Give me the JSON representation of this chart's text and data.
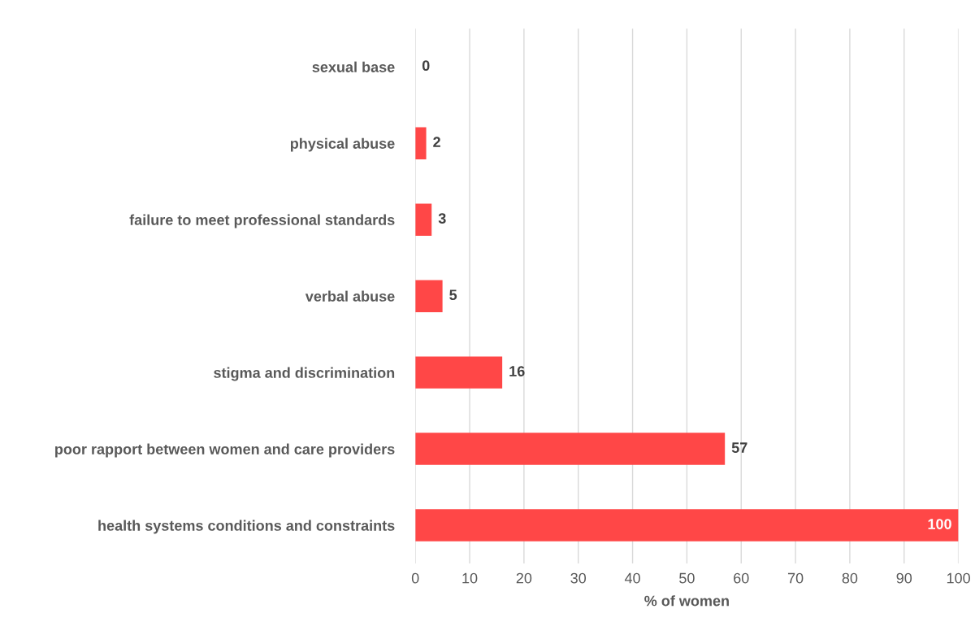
{
  "chart_data": {
    "type": "bar",
    "orientation": "horizontal",
    "xlabel": "% of women",
    "categories": [
      "sexual base",
      "physical abuse",
      "failure to meet professional standards",
      "verbal abuse",
      "stigma and discrimination",
      "poor rapport between women and care providers",
      "health systems conditions and constraints"
    ],
    "values": [
      0,
      2,
      3,
      5,
      16,
      57,
      100
    ],
    "color": "#ff4747",
    "xlim": [
      0,
      100
    ],
    "xticks": [
      0,
      10,
      20,
      30,
      40,
      50,
      60,
      70,
      80,
      90,
      100
    ],
    "grid": "x",
    "data_labels": true
  }
}
